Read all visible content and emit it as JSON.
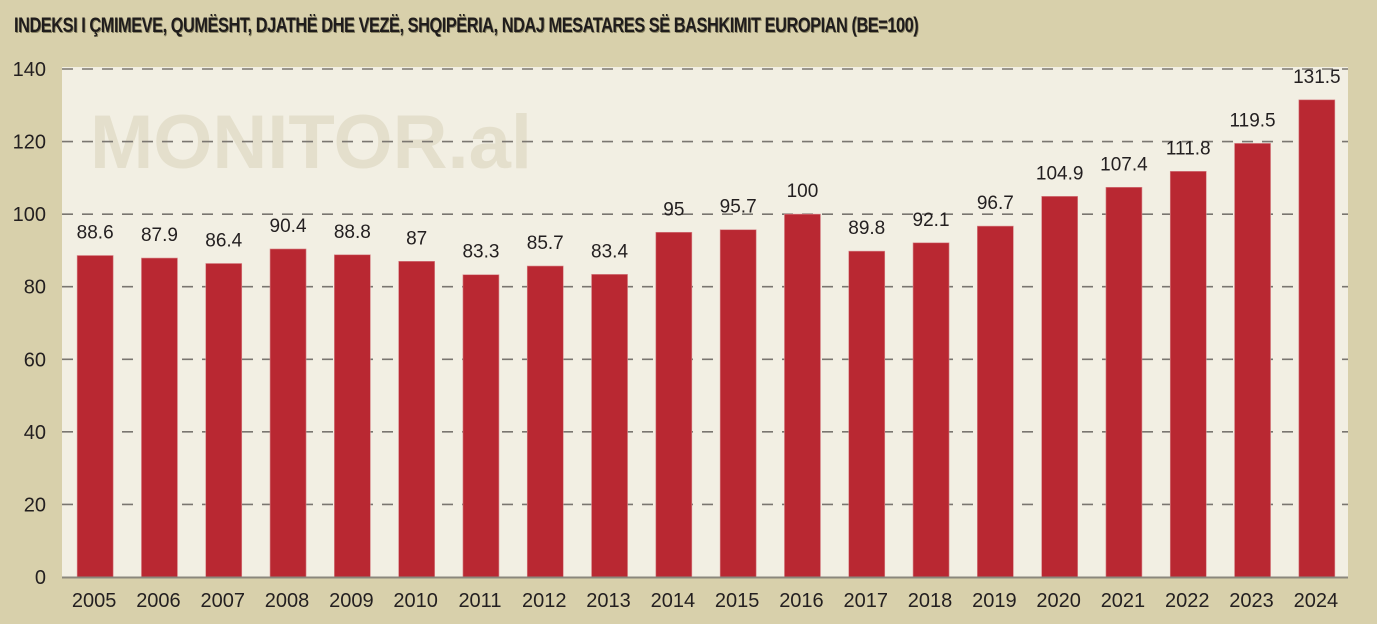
{
  "chart_data": {
    "type": "bar",
    "title": "INDEKSI I ÇMIMEVE, QUMËSHT, DJATHË DHE VEZË, SHQIPËRIA, NDAJ MESATARES SË BASHKIMIT EUROPIAN (BE=100)",
    "watermark": "MONITOR.al",
    "xlabel": "",
    "ylabel": "",
    "ylim": [
      0,
      140
    ],
    "yticks": [
      0,
      20,
      40,
      60,
      80,
      100,
      120,
      140
    ],
    "grid": true,
    "legend": "none",
    "categories": [
      "2005",
      "2006",
      "2007",
      "2008",
      "2009",
      "2010",
      "2011",
      "2012",
      "2013",
      "2014",
      "2015",
      "2016",
      "2017",
      "2018",
      "2019",
      "2020",
      "2021",
      "2022",
      "2023",
      "2024"
    ],
    "values": [
      88.6,
      87.9,
      86.4,
      90.4,
      88.8,
      87,
      83.3,
      85.7,
      83.4,
      95,
      95.7,
      100,
      89.8,
      92.1,
      96.7,
      104.9,
      107.4,
      111.8,
      119.5,
      131.5
    ],
    "value_labels": [
      "88.6",
      "87.9",
      "86.4",
      "90.4",
      "88.8",
      "87",
      "83.3",
      "85.7",
      "83.4",
      "95",
      "95.7",
      "100",
      "89.8",
      "92.1",
      "96.7",
      "104.9",
      "107.4",
      "111.8",
      "119.5",
      "131.5"
    ],
    "colors": {
      "bar": "#b92832",
      "plot_background": "#f2efe3",
      "page_background": "#d8d0ab",
      "gridline": "#7a7670",
      "text": "#231f20",
      "watermark": "#e4dfcc"
    }
  }
}
